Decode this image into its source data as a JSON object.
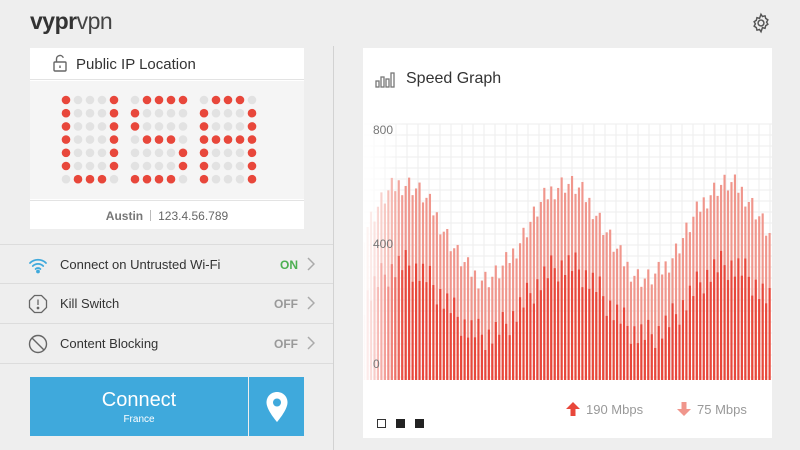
{
  "app": {
    "logo_bold": "vypr",
    "logo_light": "vpn"
  },
  "ip_card": {
    "title": "Public IP Location",
    "city": "Austin",
    "ip": "123.4.56.789"
  },
  "settings": [
    {
      "label": "Connect on Untrusted Wi-Fi",
      "value": "ON",
      "icon": "wifi-icon"
    },
    {
      "label": "Kill Switch",
      "value": "OFF",
      "icon": "kill-switch-icon"
    },
    {
      "label": "Content Blocking",
      "value": "OFF",
      "icon": "block-icon"
    }
  ],
  "connect": {
    "label": "Connect",
    "location": "France"
  },
  "speed_graph": {
    "title": "Speed Graph",
    "y_ticks": [
      "800",
      "400",
      "0"
    ],
    "upload": "190 Mbps",
    "download": "75 Mbps"
  },
  "colors": {
    "accent": "#3fa9dc",
    "on": "#4caf50",
    "red": "#e8473b",
    "light_red": "#f0968c"
  }
}
